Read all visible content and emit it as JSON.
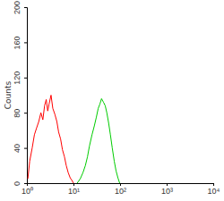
{
  "chart_data": {
    "type": "line",
    "y_label": "Counts",
    "log": "x",
    "xlim": [
      1,
      10000
    ],
    "xticks": [
      {
        "value": 1,
        "label": "10⁰"
      },
      {
        "value": 10,
        "label": "10¹"
      },
      {
        "value": 100,
        "label": "10²"
      },
      {
        "value": 1000,
        "label": "10³"
      },
      {
        "value": 10000,
        "label": "10⁴"
      }
    ],
    "ylim": [
      0,
      200
    ],
    "yticks": [
      0,
      40,
      80,
      120,
      160,
      200
    ],
    "series": [
      {
        "color": "#ff0000",
        "x": [
          1.05,
          1.15,
          1.3,
          1.45,
          1.6,
          1.8,
          2.0,
          2.2,
          2.4,
          2.6,
          2.8,
          3.0,
          3.3,
          3.6,
          4.0,
          4.4,
          4.8,
          5.3,
          5.8,
          6.4,
          7.0,
          7.7,
          8.5,
          9.3,
          10
        ],
        "values": [
          5,
          25,
          40,
          55,
          62,
          70,
          80,
          72,
          88,
          95,
          82,
          90,
          100,
          85,
          78,
          70,
          58,
          50,
          38,
          30,
          20,
          12,
          6,
          3,
          0
        ]
      },
      {
        "color": "#00cc00",
        "x": [
          12,
          14,
          16,
          18,
          20,
          22,
          25,
          28,
          31,
          34,
          37,
          40,
          44,
          48,
          52,
          57,
          62,
          68,
          75,
          82,
          90,
          98
        ],
        "values": [
          0,
          5,
          12,
          20,
          30,
          42,
          55,
          65,
          75,
          85,
          90,
          96,
          92,
          88,
          80,
          68,
          55,
          40,
          25,
          14,
          6,
          0
        ]
      }
    ]
  }
}
